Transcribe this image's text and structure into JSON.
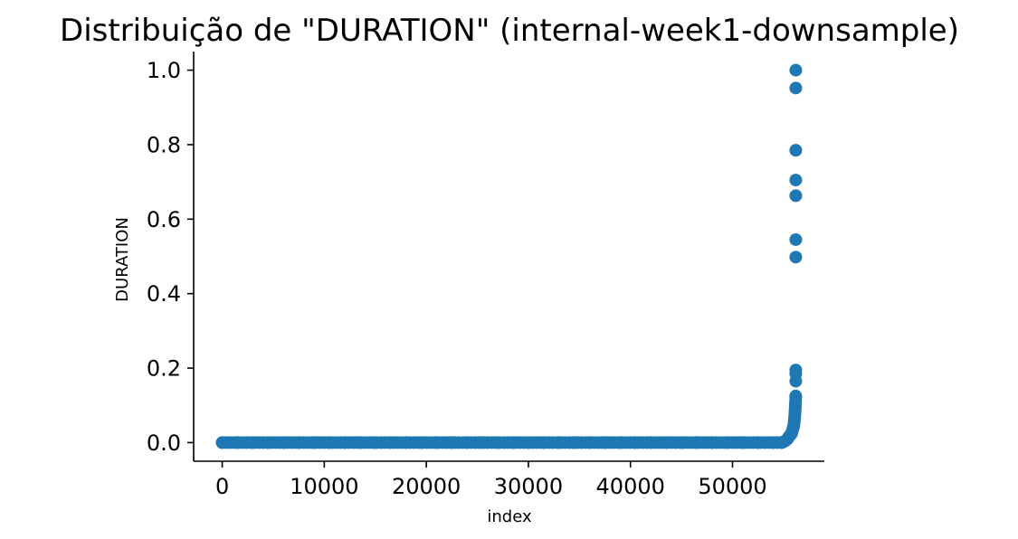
{
  "chart_data": {
    "type": "scatter",
    "title": "Distribuição de \"DURATION\" (internal-week1-downsample)",
    "xlabel": "index",
    "ylabel": "DURATION",
    "xlim": [
      -2800,
      59000
    ],
    "ylim": [
      -0.05,
      1.05
    ],
    "x_ticks": [
      0,
      10000,
      20000,
      30000,
      40000,
      50000
    ],
    "x_tick_labels": [
      "0",
      "10000",
      "20000",
      "30000",
      "40000",
      "50000"
    ],
    "y_ticks": [
      0.0,
      0.2,
      0.4,
      0.6,
      0.8,
      1.0
    ],
    "y_tick_labels": [
      "0.0",
      "0.2",
      "0.4",
      "0.6",
      "0.8",
      "1.0"
    ],
    "grid": false,
    "marker_color": "#1f77b4",
    "series": [
      {
        "x": [
          0,
          1500,
          3000,
          4500,
          6000,
          7500,
          9000,
          10500,
          12000,
          13500,
          15000,
          16500,
          18000,
          19500,
          21000,
          22500,
          24000,
          25500,
          27000,
          28500,
          30000,
          31500,
          33000,
          34500,
          36000,
          37500,
          39000,
          40500,
          42000,
          43500,
          45000,
          46500,
          48000,
          49500,
          51000,
          52500,
          54000,
          54800,
          55000,
          55200,
          55400,
          55500,
          55600,
          55700,
          55800,
          55850,
          55900,
          55950,
          56000,
          56020,
          56040,
          56060,
          56080,
          56100,
          56110,
          56120,
          56130,
          56140,
          56150,
          56160,
          56170,
          56180,
          56190,
          56195,
          56200,
          56200,
          56200,
          56200,
          56200,
          56200,
          56200,
          56200
        ],
        "y": [
          0,
          0,
          0,
          0,
          0,
          0,
          0,
          0,
          0,
          0,
          0,
          0,
          0,
          0,
          0,
          0,
          0,
          0,
          0,
          0,
          0,
          0,
          0,
          0,
          0,
          0,
          0,
          0,
          0,
          0,
          0,
          0,
          0,
          0,
          0,
          0,
          0,
          0,
          0.002,
          0.005,
          0.01,
          0.015,
          0.018,
          0.022,
          0.025,
          0.03,
          0.035,
          0.04,
          0.045,
          0.05,
          0.055,
          0.06,
          0.065,
          0.07,
          0.075,
          0.08,
          0.085,
          0.09,
          0.095,
          0.1,
          0.105,
          0.11,
          0.12,
          0.125,
          0.165,
          0.185,
          0.195,
          0.498,
          0.545,
          0.663,
          0.705,
          0.785
        ],
        "extra_x": [
          56200,
          56200
        ],
        "extra_y": [
          0.952,
          1.0
        ]
      }
    ]
  }
}
